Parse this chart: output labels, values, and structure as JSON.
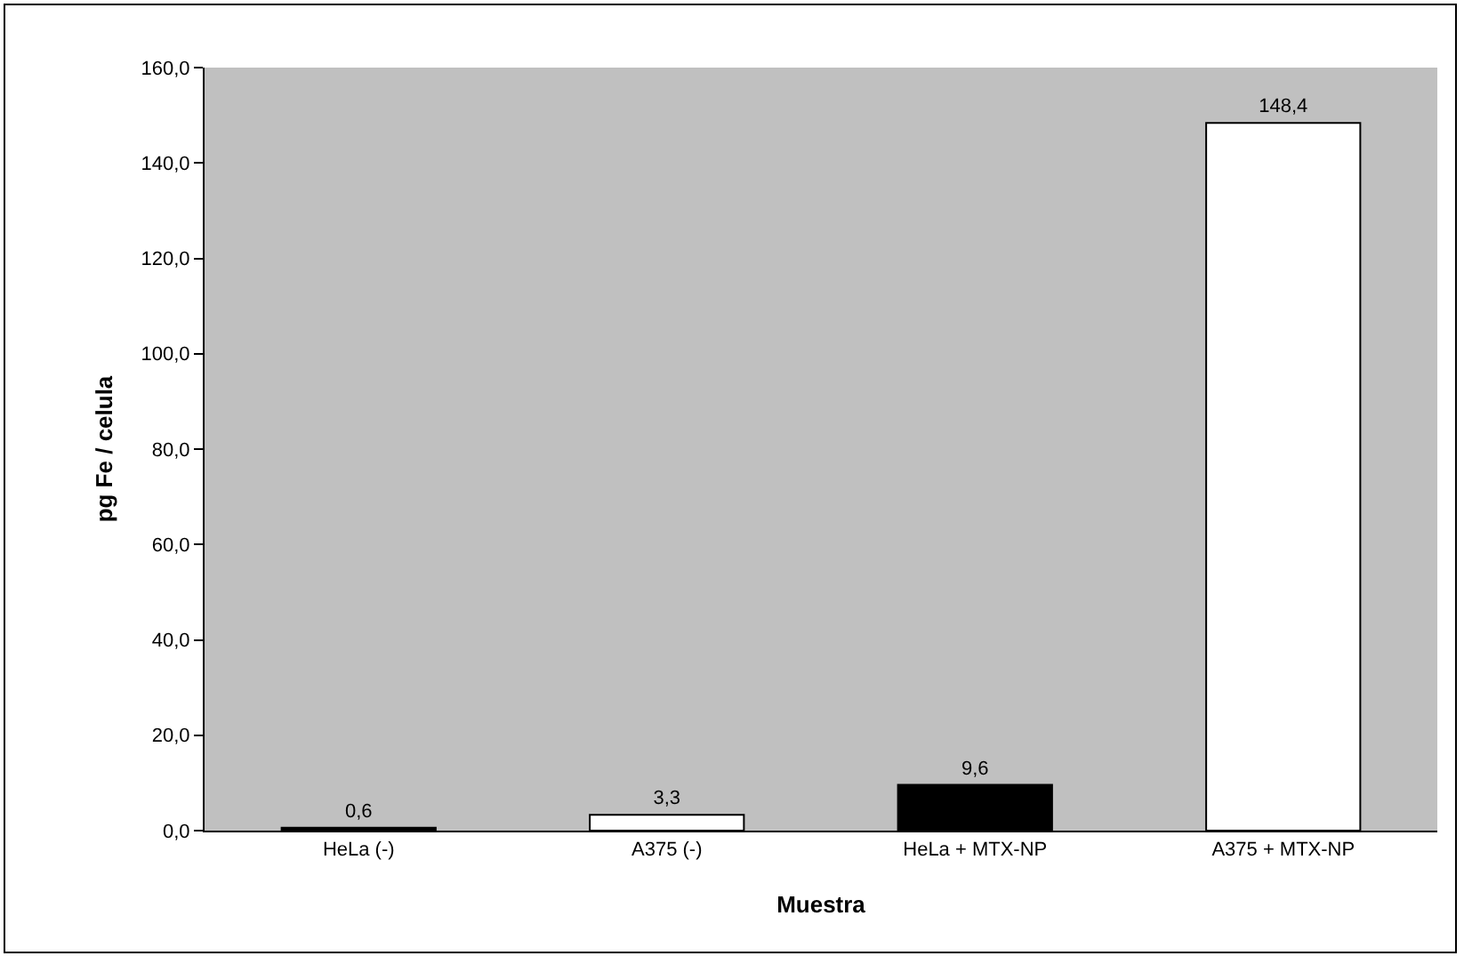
{
  "chart_data": {
    "type": "bar",
    "xlabel": "Muestra",
    "ylabel": "pg Fe / celula",
    "categories": [
      "HeLa (-)",
      "A375 (-)",
      "HeLa + MTX-NP",
      "A375 + MTX-NP"
    ],
    "values": [
      0.6,
      3.3,
      9.6,
      148.4
    ],
    "value_labels": [
      "0,6",
      "3,3",
      "9,6",
      "148,4"
    ],
    "colors": [
      "#000000",
      "#ffffff",
      "#000000",
      "#ffffff"
    ],
    "ylim": [
      0,
      160
    ],
    "yticks": [
      {
        "value": 0,
        "label": "0,0"
      },
      {
        "value": 20,
        "label": "20,0"
      },
      {
        "value": 40,
        "label": "40,0"
      },
      {
        "value": 60,
        "label": "60,0"
      },
      {
        "value": 80,
        "label": "80,0"
      },
      {
        "value": 100,
        "label": "100,0"
      },
      {
        "value": 120,
        "label": "120,0"
      },
      {
        "value": 140,
        "label": "140,0"
      },
      {
        "value": 160,
        "label": "160,0"
      }
    ],
    "grid": false
  }
}
